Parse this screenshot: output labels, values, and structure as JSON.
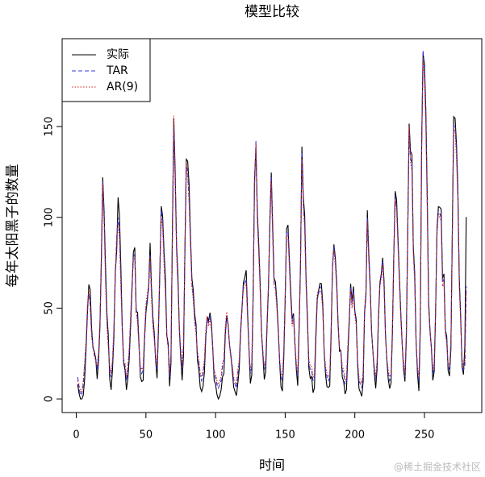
{
  "chart_data": {
    "type": "line",
    "title": "模型比较",
    "x_label": "时间",
    "y_label": "每年太阳黑子的数量",
    "watermark": "@稀土掘金技术社区",
    "legend": "topleft",
    "grid": false,
    "xlim": [
      -10.16,
      291.16
    ],
    "ylim": [
      -7.5,
      198.4
    ],
    "xticks": [
      0,
      50,
      100,
      150,
      200,
      250
    ],
    "yticks": [
      0,
      50,
      100,
      150
    ],
    "x": [
      1,
      2,
      3,
      4,
      5,
      6,
      7,
      8,
      9,
      10,
      11,
      12,
      13,
      14,
      15,
      16,
      17,
      18,
      19,
      20,
      21,
      22,
      23,
      24,
      25,
      26,
      27,
      28,
      29,
      30,
      31,
      32,
      33,
      34,
      35,
      36,
      37,
      38,
      39,
      40,
      41,
      42,
      43,
      44,
      45,
      46,
      47,
      48,
      49,
      50,
      51,
      52,
      53,
      54,
      55,
      56,
      57,
      58,
      59,
      60,
      61,
      62,
      63,
      64,
      65,
      66,
      67,
      68,
      69,
      70,
      71,
      72,
      73,
      74,
      75,
      76,
      77,
      78,
      79,
      80,
      81,
      82,
      83,
      84,
      85,
      86,
      87,
      88,
      89,
      90,
      91,
      92,
      93,
      94,
      95,
      96,
      97,
      98,
      99,
      100,
      101,
      102,
      103,
      104,
      105,
      106,
      107,
      108,
      109,
      110,
      111,
      112,
      113,
      114,
      115,
      116,
      117,
      118,
      119,
      120,
      121,
      122,
      123,
      124,
      125,
      126,
      127,
      128,
      129,
      130,
      131,
      132,
      133,
      134,
      135,
      136,
      137,
      138,
      139,
      140,
      141,
      142,
      143,
      144,
      145,
      146,
      147,
      148,
      149,
      150,
      151,
      152,
      153,
      154,
      155,
      156,
      157,
      158,
      159,
      160,
      161,
      162,
      163,
      164,
      165,
      166,
      167,
      168,
      169,
      170,
      171,
      172,
      173,
      174,
      175,
      176,
      177,
      178,
      179,
      180,
      181,
      182,
      183,
      184,
      185,
      186,
      187,
      188,
      189,
      190,
      191,
      192,
      193,
      194,
      195,
      196,
      197,
      198,
      199,
      200,
      201,
      202,
      203,
      204,
      205,
      206,
      207,
      208,
      209,
      210,
      211,
      212,
      213,
      214,
      215,
      216,
      217,
      218,
      219,
      220,
      221,
      222,
      223,
      224,
      225,
      226,
      227,
      228,
      229,
      230,
      231,
      232,
      233,
      234,
      235,
      236,
      237,
      238,
      239,
      240,
      241,
      242,
      243,
      244,
      245,
      246,
      247,
      248,
      249,
      250,
      251,
      252,
      253,
      254,
      255,
      256,
      257,
      258,
      259,
      260,
      261,
      262,
      263,
      264,
      265,
      266,
      267,
      268,
      269,
      270,
      271,
      272,
      273,
      274,
      275,
      276,
      277,
      278,
      279,
      280
    ],
    "series": [
      {
        "name": "实际",
        "color": "#000000",
        "line_style": "solid",
        "values": [
          8,
          3,
          0,
          0,
          2,
          11,
          27,
          47,
          63,
          60,
          39,
          28,
          26,
          22,
          11,
          21,
          40,
          78,
          122,
          103,
          73,
          47,
          35,
          11,
          5,
          16,
          34,
          70,
          81,
          111,
          101,
          73,
          40,
          20,
          16,
          5,
          11,
          22,
          40,
          60,
          80.9,
          83.4,
          47.7,
          47.8,
          30.7,
          12.2,
          9.6,
          10.2,
          32.4,
          47.6,
          54,
          62.9,
          85.9,
          61.2,
          45.1,
          36.4,
          20.9,
          11.4,
          37.8,
          69.8,
          106.1,
          100.8,
          81.6,
          66.5,
          34.8,
          30.6,
          7,
          19.8,
          92.5,
          154.4,
          125.9,
          84.8,
          68.1,
          38.5,
          22.8,
          10.2,
          24.1,
          82.9,
          132,
          130.9,
          118.1,
          89.9,
          66.6,
          60,
          46.9,
          41,
          21.3,
          16,
          6.4,
          4.1,
          6.8,
          14.5,
          34,
          45,
          43.1,
          47.5,
          42.2,
          28.1,
          10.1,
          8.1,
          2.5,
          0,
          1.4,
          5,
          12.2,
          13.9,
          35.4,
          45.8,
          41.1,
          30.1,
          23.9,
          15.6,
          6.6,
          4,
          1.8,
          8.5,
          16.6,
          36.3,
          49.6,
          64.2,
          67,
          70.9,
          47.8,
          27.5,
          8.5,
          13.2,
          56.9,
          121.5,
          138.3,
          103.2,
          85.7,
          64.6,
          36.7,
          24.2,
          10.7,
          15,
          40.1,
          61.5,
          98.5,
          124.7,
          96.3,
          66.6,
          64.5,
          54.1,
          39,
          20.6,
          6.7,
          4.3,
          22.7,
          54.8,
          93.8,
          95.8,
          77.2,
          59.1,
          44,
          47,
          30.5,
          16.3,
          7.3,
          37.6,
          74,
          139,
          111.2,
          101.6,
          66.2,
          44.7,
          17,
          11.3,
          12.4,
          3.4,
          6,
          32.3,
          54.3,
          59.7,
          63.7,
          63.5,
          52.2,
          25.4,
          13.1,
          6.8,
          6.3,
          7.1,
          35.6,
          73,
          85.1,
          78,
          64,
          41.8,
          26.2,
          26.7,
          12.1,
          9.5,
          2.7,
          5,
          24.4,
          42,
          63.5,
          53.8,
          62,
          48.5,
          43.9,
          18.6,
          5.7,
          3.6,
          1.4,
          9.6,
          47.4,
          57.1,
          103.9,
          80.6,
          63.6,
          37.6,
          26.1,
          14.2,
          5.8,
          16.7,
          44.3,
          63.9,
          69,
          77.8,
          64.9,
          35.7,
          21.2,
          11.1,
          5.7,
          8.7,
          36.1,
          79.7,
          114.4,
          109.6,
          88.8,
          67.8,
          47.5,
          30.6,
          16.3,
          9.6,
          33.2,
          92.6,
          151.6,
          136.3,
          134.7,
          83.9,
          69.4,
          31.5,
          13.9,
          4.4,
          38,
          141.7,
          190.2,
          184.8,
          159,
          112.3,
          53.9,
          37.5,
          27.9,
          10.2,
          15.1,
          47,
          93.8,
          105.9,
          105.5,
          104.5,
          66.6,
          68.9,
          38,
          34.5,
          15.5,
          12.6,
          27.5,
          92.5,
          155.4,
          154.6,
          140.4,
          115.9,
          66.6,
          45.9,
          17.9,
          13.4,
          29.2,
          100.2
        ]
      },
      {
        "name": "TAR",
        "color": "#3535d8",
        "line_style": "dashed",
        "values": [
          12,
          6,
          2,
          3,
          8,
          18,
          30,
          50,
          58,
          52,
          36,
          30,
          24,
          22,
          16,
          24,
          42,
          72,
          120,
          100,
          68,
          44,
          30,
          16,
          12,
          20,
          38,
          66,
          88,
          100,
          92,
          66,
          40,
          22,
          18,
          10,
          16,
          26,
          44,
          62,
          78,
          80,
          50,
          44,
          30,
          16,
          14,
          16,
          34,
          50,
          56,
          60,
          80,
          58,
          42,
          34,
          22,
          16,
          40,
          72,
          104,
          98,
          78,
          60,
          36,
          28,
          12,
          24,
          88,
          150,
          120,
          82,
          64,
          40,
          26,
          16,
          30,
          80,
          128,
          126,
          110,
          86,
          64,
          56,
          44,
          38,
          24,
          20,
          12,
          10,
          14,
          20,
          36,
          44,
          42,
          46,
          40,
          28,
          14,
          12,
          8,
          6,
          8,
          10,
          18,
          20,
          38,
          46,
          40,
          30,
          24,
          18,
          10,
          8,
          6,
          14,
          20,
          38,
          50,
          62,
          64,
          66,
          46,
          28,
          14,
          18,
          58,
          118,
          142,
          100,
          82,
          62,
          36,
          26,
          16,
          20,
          42,
          62,
          96,
          122,
          92,
          64,
          62,
          52,
          38,
          22,
          12,
          10,
          26,
          56,
          92,
          92,
          74,
          56,
          42,
          46,
          30,
          18,
          12,
          40,
          74,
          136,
          108,
          96,
          64,
          42,
          20,
          16,
          16,
          10,
          12,
          36,
          56,
          58,
          62,
          60,
          50,
          26,
          16,
          12,
          10,
          12,
          38,
          72,
          84,
          76,
          62,
          40,
          28,
          26,
          16,
          14,
          8,
          10,
          28,
          44,
          62,
          52,
          60,
          48,
          42,
          20,
          10,
          8,
          6,
          14,
          48,
          58,
          100,
          78,
          62,
          38,
          26,
          16,
          10,
          20,
          46,
          62,
          68,
          76,
          62,
          36,
          22,
          14,
          10,
          12,
          38,
          78,
          112,
          106,
          86,
          66,
          46,
          30,
          18,
          12,
          36,
          90,
          148,
          132,
          130,
          82,
          66,
          32,
          16,
          10,
          40,
          138,
          192,
          180,
          154,
          108,
          52,
          38,
          28,
          14,
          18,
          48,
          92,
          104,
          102,
          100,
          64,
          66,
          38,
          32,
          18,
          16,
          30,
          90,
          150,
          150,
          136,
          112,
          64,
          44,
          20,
          16,
          18,
          62
        ]
      },
      {
        "name": "AR(9)",
        "color": "#d42020",
        "line_style": "dotted",
        "values": [
          10,
          8,
          4,
          4,
          10,
          20,
          32,
          52,
          60,
          50,
          34,
          28,
          24,
          20,
          18,
          26,
          44,
          76,
          118,
          96,
          64,
          40,
          28,
          18,
          14,
          22,
          40,
          70,
          90,
          96,
          88,
          62,
          36,
          20,
          20,
          12,
          18,
          28,
          46,
          64,
          76,
          78,
          48,
          42,
          28,
          18,
          16,
          18,
          36,
          52,
          58,
          62,
          78,
          56,
          40,
          32,
          24,
          18,
          42,
          74,
          100,
          94,
          74,
          58,
          34,
          28,
          14,
          26,
          86,
          156,
          122,
          80,
          62,
          38,
          28,
          18,
          32,
          78,
          130,
          122,
          108,
          84,
          62,
          54,
          42,
          36,
          26,
          22,
          14,
          12,
          16,
          22,
          38,
          46,
          40,
          44,
          38,
          26,
          16,
          14,
          10,
          8,
          10,
          12,
          20,
          22,
          40,
          48,
          42,
          30,
          22,
          18,
          12,
          10,
          8,
          16,
          22,
          40,
          52,
          60,
          62,
          64,
          44,
          26,
          16,
          20,
          60,
          116,
          140,
          98,
          80,
          60,
          34,
          24,
          18,
          22,
          44,
          64,
          94,
          120,
          90,
          62,
          60,
          50,
          36,
          22,
          14,
          12,
          28,
          58,
          90,
          90,
          72,
          54,
          40,
          44,
          30,
          20,
          14,
          42,
          76,
          132,
          106,
          94,
          62,
          40,
          22,
          18,
          18,
          12,
          14,
          38,
          58,
          60,
          60,
          58,
          48,
          26,
          18,
          14,
          12,
          14,
          40,
          74,
          82,
          74,
          60,
          40,
          28,
          26,
          18,
          16,
          10,
          12,
          30,
          46,
          60,
          50,
          58,
          46,
          40,
          22,
          12,
          10,
          8,
          16,
          50,
          60,
          98,
          76,
          60,
          36,
          26,
          18,
          12,
          22,
          48,
          64,
          66,
          74,
          60,
          34,
          22,
          16,
          12,
          14,
          40,
          80,
          110,
          104,
          84,
          64,
          44,
          30,
          20,
          14,
          38,
          92,
          150,
          130,
          126,
          80,
          64,
          30,
          18,
          12,
          42,
          136,
          188,
          176,
          150,
          104,
          50,
          36,
          28,
          16,
          20,
          50,
          90,
          102,
          100,
          98,
          62,
          64,
          36,
          30,
          20,
          18,
          32,
          88,
          148,
          148,
          132,
          110,
          62,
          42,
          22,
          18,
          20,
          60
        ]
      }
    ]
  }
}
